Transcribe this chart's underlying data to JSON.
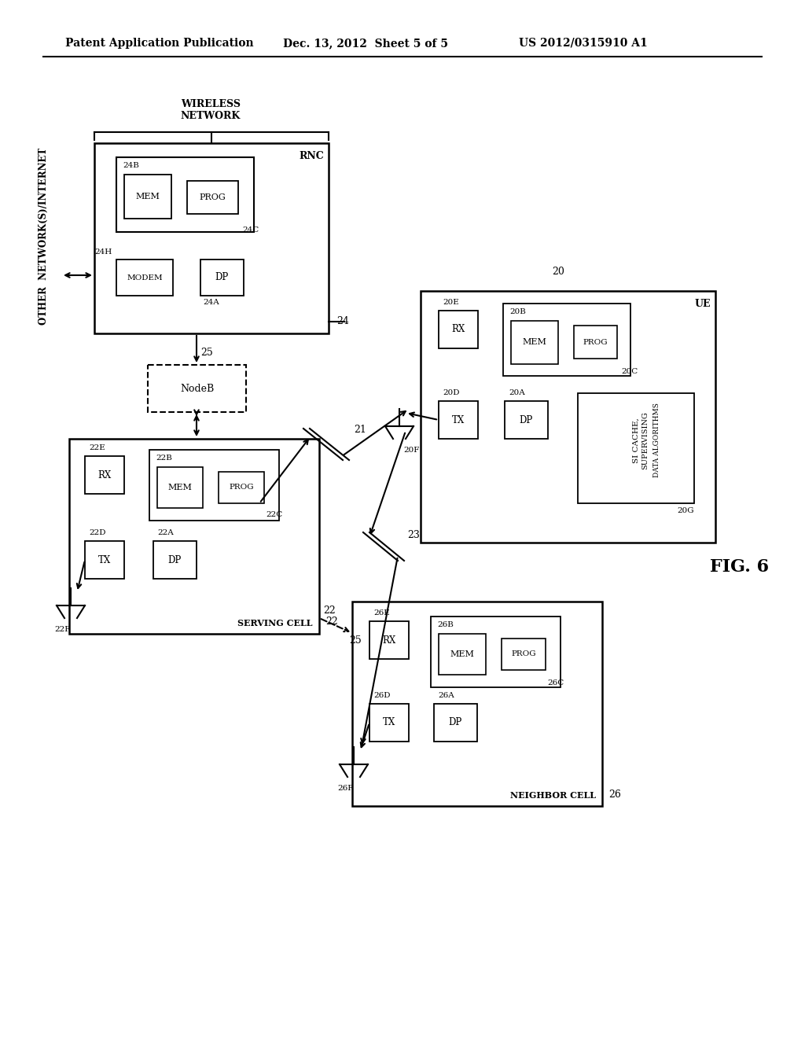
{
  "bg_color": "#ffffff",
  "header_left": "Patent Application Publication",
  "header_mid": "Dec. 13, 2012  Sheet 5 of 5",
  "header_right": "US 2012/0315910 A1",
  "fig_label": "FIG. 6"
}
